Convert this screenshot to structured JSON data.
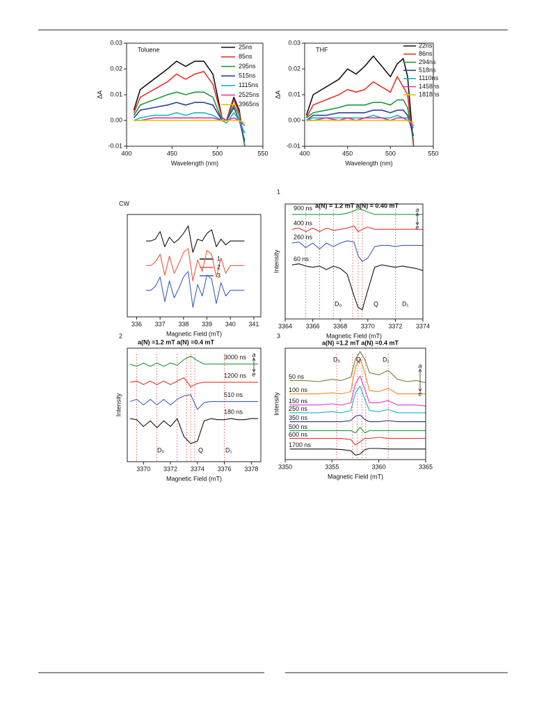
{
  "chart_data": [
    {
      "type": "line",
      "title": "Toluene",
      "xlabel": "Wavelength (nm)",
      "ylabel": "ΔA",
      "xlim": [
        400,
        550
      ],
      "xticks": [
        400,
        450,
        500,
        550
      ],
      "ylim": [
        -0.01,
        0.03
      ],
      "yticks": [
        -0.01,
        {
          "value": 0,
          "label": "0.00"
        },
        0.01,
        0.02,
        0.03
      ],
      "x": [
        408,
        415,
        430,
        445,
        455,
        465,
        475,
        485,
        495,
        505,
        510,
        518,
        524,
        530
      ],
      "series": [
        {
          "name": "25ns",
          "color": "#111111",
          "values": [
            0.004,
            0.012,
            0.016,
            0.02,
            0.023,
            0.021,
            0.023,
            0.023,
            0.018,
            0.001,
            0.0,
            0.009,
            0.004,
            -0.01
          ]
        },
        {
          "name": "85ns",
          "color": "#e8312a",
          "values": [
            0.003,
            0.009,
            0.012,
            0.015,
            0.018,
            0.016,
            0.018,
            0.019,
            0.014,
            0.001,
            0.0,
            0.008,
            0.003,
            -0.01
          ]
        },
        {
          "name": "295ns",
          "color": "#1a9a3a",
          "values": [
            0.002,
            0.006,
            0.008,
            0.01,
            0.011,
            0.01,
            0.011,
            0.011,
            0.009,
            0.0,
            0.0,
            0.006,
            0.002,
            -0.01
          ]
        },
        {
          "name": "515ns",
          "color": "#2b3fa0",
          "values": [
            0.001,
            0.004,
            0.005,
            0.006,
            0.007,
            0.006,
            0.007,
            0.007,
            0.006,
            0.0,
            0.0,
            0.005,
            0.0,
            -0.008
          ]
        },
        {
          "name": "1115ns",
          "color": "#17b5c8",
          "values": [
            0.0,
            0.001,
            0.002,
            0.002,
            0.003,
            0.002,
            0.003,
            0.003,
            0.002,
            0.0,
            -0.001,
            0.003,
            0.0,
            -0.005
          ]
        },
        {
          "name": "2525ns",
          "color": "#d9349a",
          "values": [
            0.0,
            0.0,
            0.001,
            0.001,
            0.001,
            0.001,
            0.001,
            0.001,
            0.001,
            0.0,
            0.0,
            0.001,
            0.0,
            -0.002
          ]
        },
        {
          "name": "3965ns",
          "color": "#e8c000",
          "values": [
            0,
            0,
            0,
            0,
            0,
            0,
            0,
            0,
            0,
            0,
            0,
            0,
            0,
            -0.001
          ]
        }
      ]
    },
    {
      "type": "line",
      "title": "THF",
      "xlabel": "Wavelength (nm)",
      "ylabel": "ΔA",
      "xlim": [
        400,
        550
      ],
      "xticks": [
        400,
        450,
        500,
        550
      ],
      "ylim": [
        -0.01,
        0.03
      ],
      "yticks": [
        -0.01,
        {
          "value": 0,
          "label": "0.00"
        },
        0.01,
        0.02,
        0.03
      ],
      "x": [
        402,
        410,
        425,
        440,
        450,
        460,
        470,
        480,
        490,
        500,
        508,
        515,
        520,
        527
      ],
      "series": [
        {
          "name": "22ns",
          "color": "#111111",
          "values": [
            0.002,
            0.01,
            0.013,
            0.016,
            0.02,
            0.018,
            0.021,
            0.025,
            0.021,
            0.017,
            0.022,
            0.024,
            0.017,
            -0.01
          ]
        },
        {
          "name": "86ns",
          "color": "#e8312a",
          "values": [
            0.001,
            0.006,
            0.008,
            0.01,
            0.012,
            0.011,
            0.012,
            0.015,
            0.013,
            0.011,
            0.017,
            0.013,
            0.01,
            -0.01
          ]
        },
        {
          "name": "294ns",
          "color": "#1a9a3a",
          "values": [
            0.001,
            0.003,
            0.004,
            0.005,
            0.006,
            0.006,
            0.006,
            0.007,
            0.007,
            0.006,
            0.008,
            0.008,
            0.005,
            -0.008
          ]
        },
        {
          "name": "518ns",
          "color": "#2b3fa0",
          "values": [
            0.0,
            0.002,
            0.002,
            0.003,
            0.003,
            0.003,
            0.003,
            0.004,
            0.004,
            0.003,
            0.004,
            0.004,
            0.002,
            -0.006
          ]
        },
        {
          "name": "1110ns",
          "color": "#17b5c8",
          "values": [
            0,
            0.001,
            0.001,
            0.001,
            0.001,
            0.001,
            0.001,
            0.002,
            0.001,
            0.001,
            0.002,
            0.001,
            0.001,
            -0.003
          ]
        },
        {
          "name": "1458ns",
          "color": "#d9349a",
          "values": [
            0,
            0,
            0.001,
            0,
            0.001,
            0,
            0.001,
            0.001,
            0.001,
            0,
            0.001,
            0.001,
            0,
            -0.002
          ]
        },
        {
          "name": "1818ns",
          "color": "#e8c000",
          "values": [
            0,
            0,
            0,
            0,
            0,
            0,
            0,
            0,
            0,
            0,
            0,
            0,
            0,
            -0.001
          ]
        }
      ]
    },
    {
      "type": "line",
      "title": "CW",
      "xlabel": "Magnetic Field (mT)",
      "xlim": [
        335.6,
        341.3
      ],
      "xticks": [
        336,
        337,
        338,
        339,
        340,
        341
      ],
      "ylim": [
        -0.8,
        4.6
      ],
      "x": [
        336.4,
        336.6,
        336.8,
        337.0,
        337.2,
        337.4,
        337.6,
        337.8,
        338.0,
        338.2,
        338.4,
        338.6,
        338.8,
        339.0,
        339.2,
        339.4,
        339.6,
        339.8,
        340.0,
        340.2,
        340.4,
        340.6
      ],
      "series": [
        {
          "name": "1",
          "color": "#111111",
          "values": [
            3.2,
            3.2,
            3.3,
            3.7,
            2.9,
            3.4,
            3.1,
            3.3,
            3.6,
            4.0,
            2.6,
            3.3,
            3.2,
            3.6,
            3.8,
            2.9,
            3.3,
            3.0,
            3.2,
            3.2,
            3.2,
            3.2
          ]
        },
        {
          "name": "2",
          "color": "#f0553a",
          "values": [
            1.9,
            1.9,
            2.1,
            2.5,
            1.4,
            2.4,
            1.5,
            2.0,
            2.6,
            2.8,
            1.1,
            2.2,
            1.6,
            2.7,
            2.5,
            1.3,
            2.3,
            1.5,
            1.9,
            1.9,
            1.9,
            1.9
          ]
        },
        {
          "name": "3",
          "color": "#3a5ec0",
          "values": [
            0.6,
            0.6,
            0.8,
            1.3,
            0.0,
            1.1,
            0.2,
            0.7,
            1.3,
            1.6,
            -0.3,
            0.9,
            0.3,
            1.4,
            1.2,
            -0.1,
            1.0,
            0.3,
            0.6,
            0.6,
            0.6,
            0.6
          ]
        }
      ]
    },
    {
      "type": "line",
      "title": "1",
      "xlabel": "Magnetic Field (mT)",
      "ylabel": "Intensity",
      "note": "a(N) = 1.2 mT  a(N) = 0.40 mT",
      "annotations": [
        "D₀",
        "Q",
        "D₁"
      ],
      "phase_labels": [
        "a",
        "e"
      ],
      "xlim": [
        3364,
        3374
      ],
      "xticks": [
        3364,
        3366,
        3368,
        3370,
        3372,
        3374
      ],
      "ylim": [
        0,
        10
      ],
      "marker_lines": [
        3365.5,
        3366.5,
        3367.5,
        3368.9,
        3369.3,
        3369.6,
        3372
      ],
      "x": [
        3364.5,
        3365,
        3365.5,
        3366,
        3366.5,
        3367,
        3367.5,
        3368,
        3368.5,
        3369,
        3369.3,
        3369.6,
        3370,
        3370.5,
        3371,
        3371.5,
        3372,
        3372.5,
        3373,
        3373.5,
        3374
      ],
      "series": [
        {
          "name": "900 ns",
          "color": "#1a9a3a",
          "values": [
            9.1,
            9.1,
            9.1,
            9.1,
            9.1,
            9.1,
            9.1,
            9.1,
            9.2,
            9.4,
            9.6,
            9.5,
            9.3,
            9.1,
            9.1,
            9.1,
            9.1,
            9.1,
            9.1,
            9.1,
            9.1
          ]
        },
        {
          "name": "400 ns",
          "color": "#e8312a",
          "values": [
            7.8,
            7.9,
            7.6,
            7.9,
            7.6,
            7.9,
            7.7,
            7.8,
            7.9,
            8.1,
            7.6,
            7.8,
            8.0,
            7.8,
            7.8,
            7.8,
            7.8,
            7.8,
            7.8,
            7.8,
            7.8
          ]
        },
        {
          "name": "260 ns",
          "color": "#3a5ec0",
          "values": [
            6.6,
            6.7,
            6.2,
            6.6,
            6.1,
            6.6,
            6.3,
            6.6,
            6.8,
            6.7,
            5.5,
            5.0,
            5.3,
            6.3,
            6.4,
            6.4,
            6.3,
            6.4,
            6.4,
            6.4,
            6.4
          ]
        },
        {
          "name": "60 ns",
          "color": "#111111",
          "values": [
            4.7,
            4.8,
            4.6,
            4.5,
            4.6,
            4.3,
            4.6,
            4.4,
            3.9,
            2.0,
            1.0,
            0.8,
            2.5,
            4.5,
            4.7,
            4.6,
            4.5,
            4.6,
            4.5,
            4.4,
            4.2
          ]
        }
      ]
    },
    {
      "type": "line",
      "title": "2",
      "xlabel": "Magnetic Field (mT)",
      "ylabel": "Intensity",
      "note": "a(N) =1.2 mT   a(N) =0.4 mT",
      "annotations": [
        "D₀",
        "Q",
        "D₁"
      ],
      "phase_labels": [
        "a",
        "e"
      ],
      "xlim": [
        3368.8,
        3378.7
      ],
      "xticks": [
        3370,
        3372,
        3374,
        3376,
        3378
      ],
      "ylim": [
        0,
        10
      ],
      "marker_lines": [
        3369.5,
        3371,
        3372.5,
        3373.2,
        3373.5,
        3373.8,
        3376
      ],
      "x": [
        3369,
        3369.5,
        3370,
        3370.5,
        3371,
        3371.5,
        3372,
        3372.5,
        3373,
        3373.5,
        3374,
        3374.5,
        3375,
        3375.5,
        3376,
        3376.5,
        3377,
        3377.5,
        3378,
        3378.5
      ],
      "series": [
        {
          "name": "3000 ns",
          "color": "#1a9a3a",
          "values": [
            8.6,
            8.4,
            8.7,
            8.4,
            8.7,
            8.4,
            8.7,
            8.5,
            9.0,
            9.3,
            8.9,
            8.6,
            8.6,
            8.6,
            8.6,
            8.6,
            8.6,
            8.6,
            8.6,
            8.6
          ]
        },
        {
          "name": "1200 ns",
          "color": "#e8312a",
          "values": [
            7.0,
            7.1,
            6.8,
            7.1,
            6.8,
            7.1,
            6.8,
            7.1,
            7.4,
            6.6,
            6.9,
            7.0,
            7.0,
            7.0,
            7.0,
            7.0,
            7.0,
            7.0,
            7.0,
            7.0
          ]
        },
        {
          "name": "510 ns",
          "color": "#3a5ec0",
          "values": [
            5.3,
            5.5,
            5.0,
            5.5,
            5.0,
            5.5,
            5.0,
            5.5,
            5.8,
            5.9,
            4.6,
            5.2,
            5.3,
            5.3,
            5.3,
            5.3,
            5.3,
            5.3,
            5.3,
            5.3
          ]
        },
        {
          "name": "180 ns",
          "color": "#111111",
          "values": [
            3.8,
            3.7,
            3.1,
            3.6,
            3.0,
            3.6,
            3.1,
            3.8,
            2.2,
            1.6,
            1.8,
            3.6,
            3.8,
            3.7,
            3.7,
            3.8,
            3.7,
            3.7,
            3.8,
            3.8
          ]
        }
      ]
    },
    {
      "type": "line",
      "title": "3",
      "xlabel": "Magnetic Field (mT)",
      "ylabel": "Intensity",
      "note": "a(N) =1.2 mT  a(N) =0.4 mT",
      "annotations": [
        "D₀",
        "Q",
        "D₁"
      ],
      "phase_labels": [
        "a",
        "e"
      ],
      "xlim": [
        3350,
        3365
      ],
      "xticks": [
        3350,
        3355,
        3360,
        3365
      ],
      "ylim": [
        0,
        10
      ],
      "marker_lines": [
        3355.5,
        3357.2,
        3357.7,
        3358.2,
        3358.6,
        3361
      ],
      "x": [
        3350.5,
        3352,
        3353.5,
        3355,
        3356,
        3357,
        3357.5,
        3358,
        3358.5,
        3359,
        3360,
        3361,
        3362,
        3363,
        3364,
        3365
      ],
      "series": [
        {
          "name": "50 ns",
          "color": "#7a7a2a",
          "values": [
            7.1,
            7.1,
            7.0,
            7.2,
            7.1,
            7.4,
            9.0,
            9.7,
            9.0,
            7.8,
            7.6,
            8.0,
            7.2,
            7.0,
            7.1,
            6.9
          ]
        },
        {
          "name": "100 ns",
          "color": "#f08a1c",
          "values": [
            5.9,
            5.9,
            5.9,
            6.0,
            5.9,
            6.1,
            8.3,
            9.1,
            7.8,
            6.2,
            6.1,
            6.4,
            5.9,
            5.9,
            5.9,
            5.9
          ]
        },
        {
          "name": "150 ns",
          "color": "#d93ad0",
          "values": [
            4.9,
            4.9,
            4.9,
            5.0,
            4.9,
            5.1,
            6.8,
            7.5,
            6.3,
            5.1,
            5.1,
            5.3,
            4.9,
            4.9,
            4.9,
            4.8
          ]
        },
        {
          "name": "250 ns",
          "color": "#17b5c8",
          "values": [
            4.2,
            4.2,
            4.2,
            4.3,
            4.2,
            4.4,
            6.0,
            6.6,
            5.4,
            4.4,
            4.3,
            4.5,
            4.2,
            4.2,
            4.2,
            4.2
          ]
        },
        {
          "name": "350 ns",
          "color": "#2b3080",
          "values": [
            3.4,
            3.4,
            3.4,
            3.4,
            3.4,
            3.5,
            3.9,
            4.0,
            3.6,
            3.4,
            3.4,
            3.5,
            3.4,
            3.4,
            3.4,
            3.4
          ]
        },
        {
          "name": "500 ns",
          "color": "#1a9a3a",
          "values": [
            2.6,
            2.6,
            2.6,
            2.6,
            2.6,
            2.6,
            2.4,
            2.9,
            2.4,
            2.6,
            2.6,
            2.6,
            2.6,
            2.6,
            2.6,
            2.6
          ]
        },
        {
          "name": "600 ns",
          "color": "#e8312a",
          "values": [
            1.9,
            1.9,
            1.9,
            1.9,
            1.9,
            1.8,
            1.3,
            1.6,
            1.9,
            1.9,
            2.0,
            1.9,
            1.9,
            1.9,
            1.9,
            1.9
          ]
        },
        {
          "name": "1700 ns",
          "color": "#111111",
          "values": [
            0.95,
            0.95,
            0.95,
            0.95,
            0.9,
            0.8,
            0.4,
            0.5,
            0.9,
            1.0,
            1.0,
            0.95,
            0.95,
            0.95,
            0.95,
            0.95
          ]
        }
      ]
    }
  ]
}
